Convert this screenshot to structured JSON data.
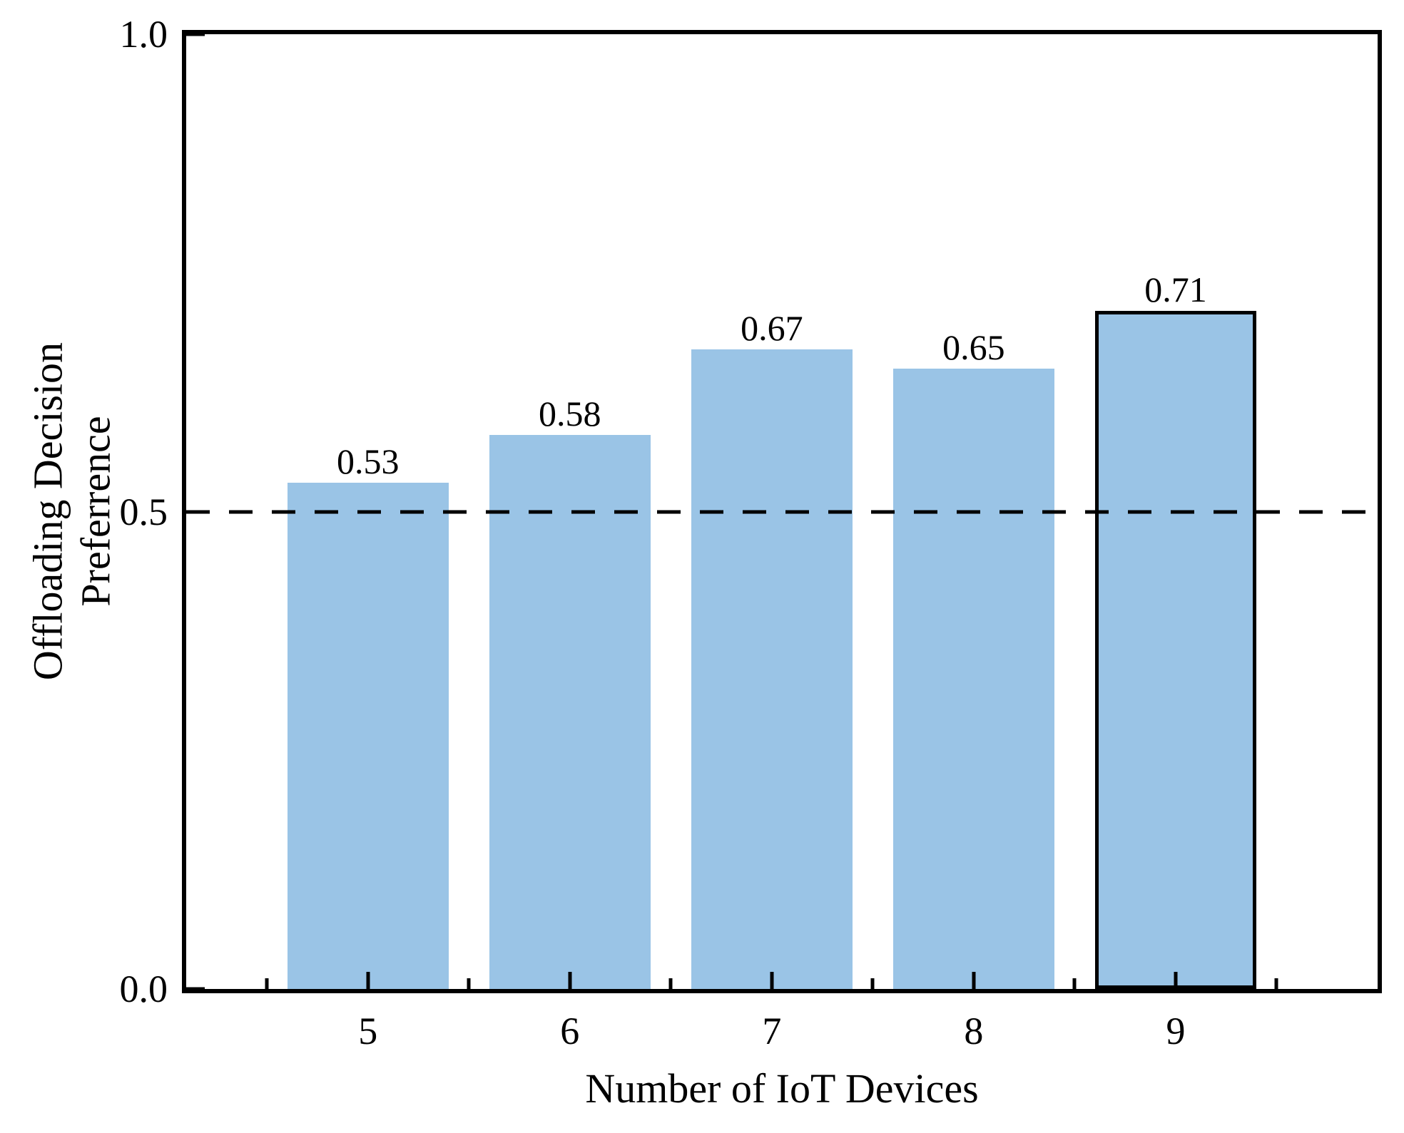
{
  "figure": {
    "background": "#ffffff",
    "text_color": "#000000"
  },
  "chart_data": {
    "type": "bar",
    "title": "",
    "xlabel": "Number of IoT Devices",
    "ylabel_lines": [
      "Offloading Decision",
      "Preferrence"
    ],
    "categories": [
      5,
      6,
      7,
      8,
      9
    ],
    "values": [
      0.53,
      0.58,
      0.67,
      0.65,
      0.71
    ],
    "bar_labels": [
      "0.53",
      "0.58",
      "0.67",
      "0.65",
      "0.71"
    ],
    "x_tick_labels": [
      "5",
      "6",
      "7",
      "8",
      "9"
    ],
    "y_ticks": [
      {
        "value": 0.0,
        "label": "0.0"
      },
      {
        "value": 0.5,
        "label": "0.5"
      },
      {
        "value": 1.0,
        "label": "1.0"
      }
    ],
    "xlim": [
      4.1,
      10.0
    ],
    "ylim": [
      0.0,
      1.0
    ],
    "bar_width": 0.8,
    "minor_x_ticks": [
      4.5,
      5.5,
      6.5,
      7.5,
      8.5,
      9.5
    ],
    "reference_line": {
      "y": 0.5,
      "style": "dashed",
      "color": "#000000"
    },
    "bar_color": "#9AC4E6",
    "highlighted_bar_index": 4,
    "highlight_edge_color": "#000000",
    "frame_color": "#000000",
    "grid": false,
    "legend": null
  }
}
